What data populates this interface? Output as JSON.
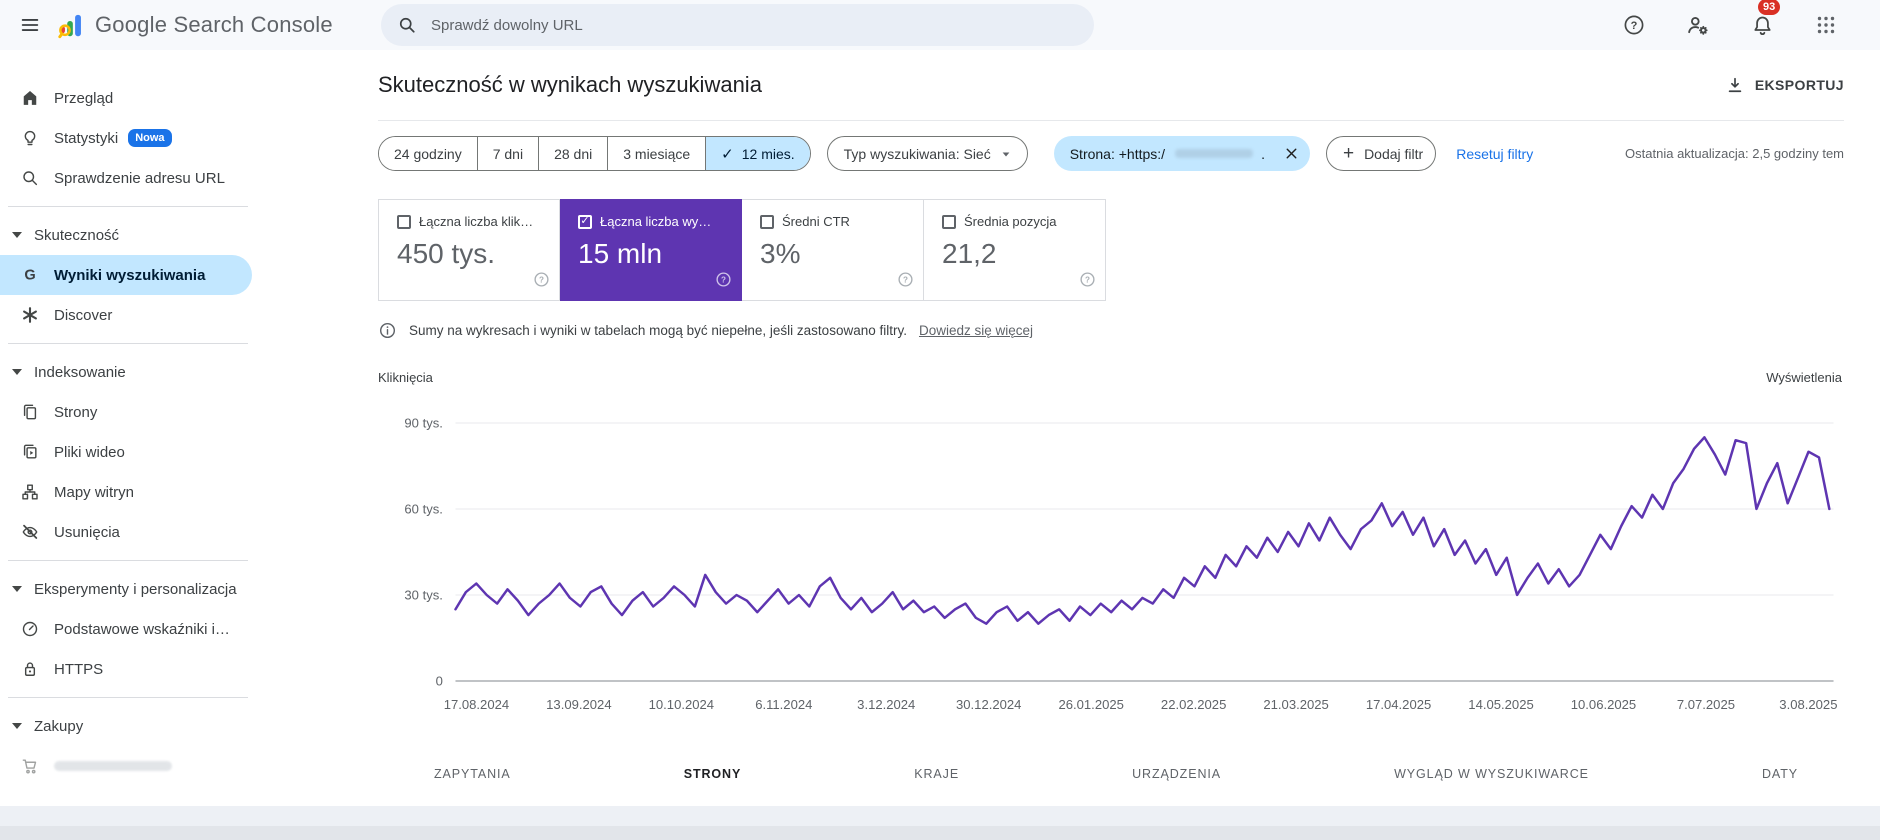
{
  "header": {
    "app_title": "Google Search Console",
    "search_placeholder": "Sprawdź dowolny URL",
    "notification_count": "93"
  },
  "page": {
    "title": "Skuteczność w wynikach wyszukiwania",
    "export_label": "EKSPORTUJ",
    "last_update": "Ostatnia aktualizacja: 2,5 godziny tem"
  },
  "date_ranges": [
    {
      "label": "24 godziny",
      "selected": false
    },
    {
      "label": "7 dni",
      "selected": false
    },
    {
      "label": "28 dni",
      "selected": false
    },
    {
      "label": "3 miesiące",
      "selected": false
    },
    {
      "label": "12 mies.",
      "selected": true
    }
  ],
  "filters": {
    "type_filter": "Typ wyszukiwania: Sieć",
    "page_filter": "Strona: +https:/",
    "page_filter_suffix": ".",
    "add_filter": "Dodaj filtr",
    "reset": "Resetuj filtry"
  },
  "metric_cards": [
    {
      "label": "Łączna liczba klik…",
      "value": "450 tys.",
      "checked": false,
      "selected": false
    },
    {
      "label": "Łączna liczba wy…",
      "value": "15 mln",
      "checked": true,
      "selected": true
    },
    {
      "label": "Średni CTR",
      "value": "3%",
      "checked": false,
      "selected": false
    },
    {
      "label": "Średnia pozycja",
      "value": "21,2",
      "checked": false,
      "selected": false
    }
  ],
  "info_banner": {
    "text": "Sumy na wykresach i wyniki w tabelach mogą być niepełne, jeśli zastosowano filtry.",
    "link": "Dowiedz się więcej"
  },
  "chart_data": {
    "type": "line",
    "axis_title_left": "Kliknięcia",
    "axis_title_right": "Wyświetlenia",
    "series_name": "Wyświetlenia",
    "series_color": "#5e35b1",
    "unit": "tys.",
    "y_max": 90,
    "y_ticks": [
      {
        "label": "90 tys.",
        "value": 90
      },
      {
        "label": "60 tys.",
        "value": 60
      },
      {
        "label": "30 tys.",
        "value": 30
      },
      {
        "label": "0",
        "value": 0
      }
    ],
    "x_ticks": [
      "17.08.2024",
      "13.09.2024",
      "10.10.2024",
      "6.11.2024",
      "3.12.2024",
      "30.12.2024",
      "26.01.2025",
      "22.02.2025",
      "21.03.2025",
      "17.04.2025",
      "14.05.2025",
      "10.06.2025",
      "7.07.2025",
      "3.08.2025"
    ],
    "values_unit_thousands": [
      25,
      31,
      34,
      30,
      27,
      32,
      28,
      23,
      27,
      30,
      34,
      29,
      26,
      31,
      33,
      27,
      23,
      28,
      31,
      26,
      29,
      33,
      30,
      26,
      37,
      31,
      27,
      30,
      28,
      24,
      28,
      32,
      27,
      30,
      26,
      33,
      36,
      29,
      25,
      29,
      24,
      27,
      31,
      25,
      28,
      24,
      26,
      22,
      25,
      27,
      22,
      20,
      24,
      26,
      21,
      24,
      20,
      23,
      25,
      21,
      26,
      23,
      27,
      24,
      28,
      25,
      29,
      27,
      32,
      29,
      36,
      33,
      40,
      36,
      44,
      40,
      47,
      43,
      50,
      45,
      52,
      47,
      55,
      49,
      57,
      51,
      46,
      53,
      56,
      62,
      54,
      59,
      51,
      57,
      47,
      53,
      44,
      49,
      41,
      46,
      37,
      43,
      30,
      36,
      41,
      34,
      39,
      33,
      37,
      44,
      51,
      46,
      54,
      61,
      57,
      65,
      60,
      69,
      74,
      81,
      85,
      79,
      72,
      84,
      83,
      60,
      69,
      76,
      62,
      71,
      80,
      78,
      60
    ],
    "grid": true
  },
  "tabs": [
    {
      "label": "ZAPYTANIA",
      "active": false
    },
    {
      "label": "STRONY",
      "active": true
    },
    {
      "label": "KRAJE",
      "active": false
    },
    {
      "label": "URZĄDZENIA",
      "active": false
    },
    {
      "label": "WYGLĄD W WYSZUKIWARCE",
      "active": false
    },
    {
      "label": "DATY",
      "active": false
    }
  ],
  "sidebar": {
    "sections": [
      {
        "items": [
          {
            "icon": "home-icon",
            "label": "Przegląd"
          },
          {
            "icon": "lightbulb-icon",
            "label": "Statystyki",
            "badge": "Nowa"
          },
          {
            "icon": "search-icon",
            "label": "Sprawdzenie adresu URL"
          }
        ]
      },
      {
        "header": "Skuteczność",
        "items": [
          {
            "icon": "google-g-icon",
            "label": "Wyniki wyszukiwania",
            "selected": true
          },
          {
            "icon": "discover-icon",
            "label": "Discover"
          }
        ]
      },
      {
        "header": "Indeksowanie",
        "items": [
          {
            "icon": "pages-icon",
            "label": "Strony"
          },
          {
            "icon": "video-icon",
            "label": "Pliki wideo"
          },
          {
            "icon": "sitemap-icon",
            "label": "Mapy witryn"
          },
          {
            "icon": "eye-off-icon",
            "label": "Usunięcia"
          }
        ]
      },
      {
        "header": "Eksperymenty i personalizacja",
        "items": [
          {
            "icon": "speedometer-icon",
            "label": "Podstawowe wskaźniki i…"
          },
          {
            "icon": "lock-icon",
            "label": "HTTPS"
          }
        ]
      },
      {
        "header": "Zakupy",
        "items": [
          {
            "icon": "cart-icon",
            "label": "",
            "partial": true
          }
        ]
      }
    ]
  },
  "colors": {
    "impressions_purple": "#5e35b1",
    "selected_chip_blue": "#c2e7ff",
    "link_blue": "#1a73e8",
    "badge_red": "#d93025",
    "nowa_badge_blue": "#1a73e8"
  }
}
